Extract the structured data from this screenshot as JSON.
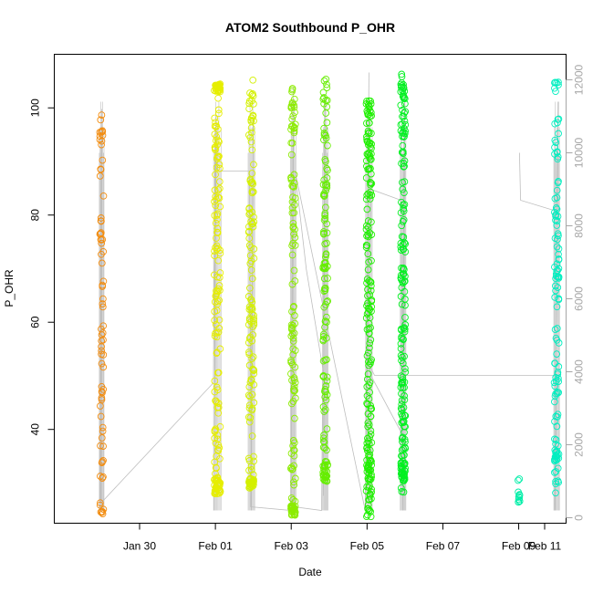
{
  "chart_data": {
    "type": "scatter",
    "title": "ATOM2 Southbound P_OHR",
    "xlabel": "Date",
    "ylabel": "P_OHR",
    "xlim": [
      -2.25,
      11.25
    ],
    "ylim": [
      22.5,
      110
    ],
    "y2lim": [
      -150,
      12700
    ],
    "x_ticks": [
      {
        "x": 0,
        "label": "Jan 30"
      },
      {
        "x": 2,
        "label": "Feb 01"
      },
      {
        "x": 4,
        "label": "Feb 03"
      },
      {
        "x": 6,
        "label": "Feb 05"
      },
      {
        "x": 8,
        "label": "Feb 07"
      },
      {
        "x": 10,
        "label": "Feb 09"
      },
      {
        "x": 12,
        "label": "Feb 11"
      }
    ],
    "y_ticks": [
      40,
      60,
      80,
      100
    ],
    "y2_ticks": [
      0,
      2000,
      4000,
      6000,
      8000,
      10000,
      12000
    ],
    "clusters": [
      {
        "x": -1.0,
        "spread": 0.05,
        "ymin": 24.0,
        "ymax": 99.0,
        "n": 75,
        "color": "#f28c0f",
        "dense_low": [
          24,
          26
        ],
        "dense_high": [
          93,
          97
        ]
      },
      {
        "x": 2.05,
        "spread": 0.08,
        "ymin": 28.0,
        "ymax": 104.5,
        "n": 190,
        "color": "#e6ee00",
        "dense_low": [
          28,
          31
        ],
        "dense_high": [
          103,
          104.5
        ]
      },
      {
        "x": 2.95,
        "spread": 0.07,
        "ymin": 29.0,
        "ymax": 105.5,
        "n": 150,
        "color": "#d4f000",
        "dense_low": [
          29,
          31
        ],
        "dense_high": null
      },
      {
        "x": 4.05,
        "spread": 0.06,
        "ymin": 24.0,
        "ymax": 104.5,
        "n": 140,
        "color": "#8cec00",
        "dense_low": [
          24,
          26
        ],
        "dense_high": null
      },
      {
        "x": 4.9,
        "spread": 0.06,
        "ymin": 30.0,
        "ymax": 106.0,
        "n": 140,
        "color": "#66ee00",
        "dense_low": [
          30,
          34
        ],
        "dense_high": null
      },
      {
        "x": 6.05,
        "spread": 0.07,
        "ymin": 23.5,
        "ymax": 102.5,
        "n": 200,
        "color": "#1ef000",
        "dense_low": [
          24,
          38
        ],
        "dense_high": null
      },
      {
        "x": 6.95,
        "spread": 0.06,
        "ymin": 28.0,
        "ymax": 106.5,
        "n": 190,
        "color": "#00f020",
        "dense_low": [
          30,
          34
        ],
        "dense_high": null
      },
      {
        "x": 10.0,
        "spread": 0.03,
        "ymin": 26.0,
        "ymax": 31.5,
        "n": 12,
        "color": "#00eea8",
        "dense_low": [
          26,
          27
        ],
        "dense_high": null
      },
      {
        "x": 11.0,
        "spread": 0.06,
        "ymin": 28.0,
        "ymax": 105.0,
        "n": 120,
        "color": "#00eec0",
        "dense_low": [
          34,
          36
        ],
        "dense_high": null
      }
    ],
    "reference_line": {
      "color": "#bebebe",
      "points": [
        [
          -1.05,
          200
        ],
        [
          -1.0,
          11200
        ],
        [
          -1.02,
          400
        ],
        [
          1.95,
          3700
        ],
        [
          2.0,
          10300
        ],
        [
          1.97,
          200
        ],
        [
          2.02,
          11000
        ],
        [
          2.05,
          9500
        ],
        [
          2.9,
          9500
        ],
        [
          2.95,
          200
        ],
        [
          3.0,
          10900
        ],
        [
          2.93,
          300
        ],
        [
          4.0,
          200
        ],
        [
          4.05,
          11800
        ],
        [
          4.07,
          300
        ],
        [
          4.8,
          200
        ],
        [
          4.9,
          11600
        ],
        [
          4.85,
          600
        ],
        [
          4.88,
          3800
        ],
        [
          4.4,
          6800
        ],
        [
          4.1,
          9500
        ],
        [
          5.95,
          200
        ],
        [
          6.05,
          12200
        ],
        [
          6.0,
          3800
        ],
        [
          6.1,
          9000
        ],
        [
          6.9,
          8700
        ],
        [
          6.95,
          200
        ],
        [
          7.0,
          11900
        ],
        [
          6.92,
          2300
        ],
        [
          6.1,
          3900
        ],
        [
          6.05,
          4200
        ],
        [
          6.2,
          3900
        ],
        [
          11.0,
          3900
        ],
        [
          10.95,
          200
        ],
        [
          11.05,
          11400
        ],
        [
          11.0,
          8400
        ],
        [
          10.05,
          8700
        ],
        [
          10.02,
          10000
        ]
      ]
    }
  }
}
